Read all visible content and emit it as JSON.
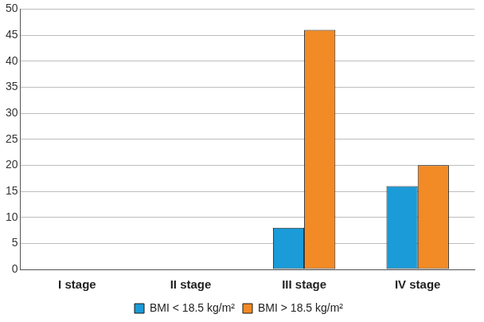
{
  "chart_data": {
    "type": "bar",
    "categories": [
      "I stage",
      "II stage",
      "III stage",
      "IV stage"
    ],
    "series": [
      {
        "name": "BMI < 18.5 kg/m²",
        "color": "#1b9bd7",
        "values": [
          0,
          0,
          8,
          16
        ]
      },
      {
        "name": "BMI > 18.5 kg/m²",
        "color": "#f28a25",
        "values": [
          0,
          0,
          46,
          20
        ]
      }
    ],
    "ylim": [
      0,
      50
    ],
    "yticks": [
      0,
      5,
      10,
      15,
      20,
      25,
      30,
      35,
      40,
      45,
      50
    ],
    "grid": true,
    "legend": "bottom"
  }
}
